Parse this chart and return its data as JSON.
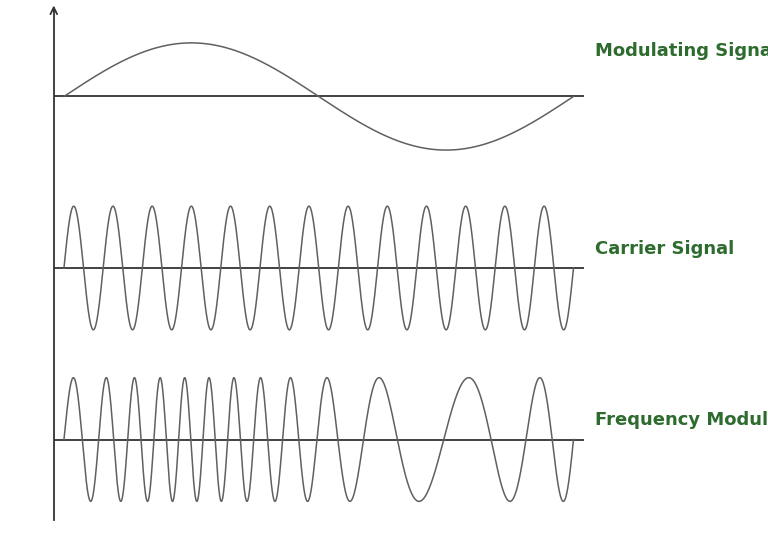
{
  "background_color": "#ffffff",
  "signal_color": "#606060",
  "axis_color": "#333333",
  "label_color": "#2e6b2e",
  "label_fontsize": 13,
  "label_fontweight": "bold",
  "labels": [
    "Modulating Signal",
    "Carrier Signal",
    "Frequency Modulation"
  ],
  "figsize": [
    7.68,
    5.36
  ],
  "dpi": 100,
  "carrier_cycles": 13,
  "fm_carrier_cycles": 13,
  "fm_delta": 8,
  "mod_freq": 1.0
}
